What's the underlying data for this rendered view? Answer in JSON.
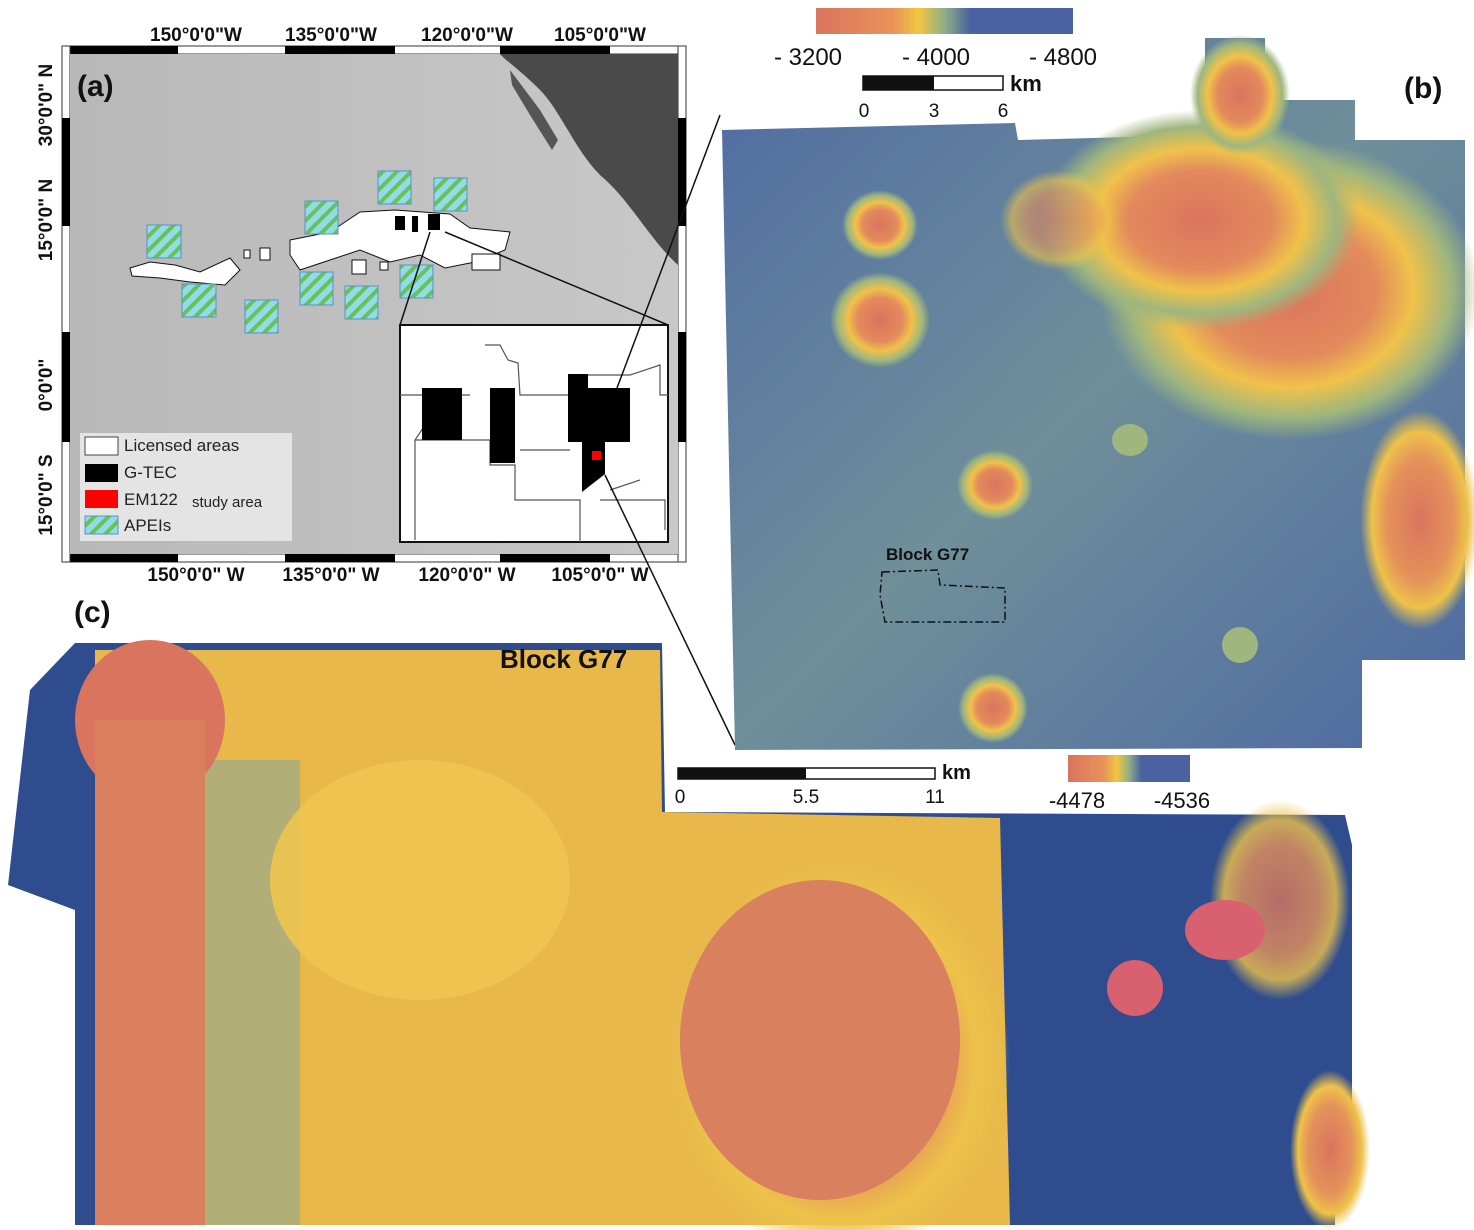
{
  "panels": {
    "a": {
      "label": "(a)",
      "top_ticks": [
        "150°0'0\"W",
        "135°0'0\"W",
        "120°0'0\"W",
        "105°0'0\"W"
      ],
      "bottom_ticks": [
        "150°0'0\" W",
        "135°0'0\" W",
        "120°0'0\" W",
        "105°0'0\" W"
      ],
      "left_ticks": [
        "30°0'0\" N",
        "15°0'0\" N",
        "0°0'0\"",
        "15°0'0\" S"
      ],
      "legend": [
        {
          "label": "Licensed areas",
          "color": "#ffffff"
        },
        {
          "label": "G-TEC",
          "color": "#000000"
        },
        {
          "label": "EM122",
          "suffix": "study area",
          "color": "#ff0000"
        },
        {
          "label": "APEIs",
          "color": "#7fd8e0"
        }
      ]
    },
    "b": {
      "label": "(b)",
      "colorbar": {
        "labels": [
          "- 3200",
          "- 4000",
          "- 4800"
        ],
        "colors": [
          "#d9745e",
          "#f2c640",
          "#4a63a0"
        ]
      },
      "scalebar": {
        "unit": "km",
        "ticks": [
          "0",
          "3",
          "6"
        ]
      },
      "annotation": "Block G77"
    },
    "c": {
      "label": "(c)",
      "title": "Block G77",
      "colorbar": {
        "labels": [
          "-4478",
          "-4536"
        ],
        "colors": [
          "#d9745e",
          "#f2c640",
          "#4a63a0"
        ]
      },
      "scalebar": {
        "unit": "km",
        "ticks": [
          "0",
          "5.5",
          "11"
        ]
      }
    }
  }
}
